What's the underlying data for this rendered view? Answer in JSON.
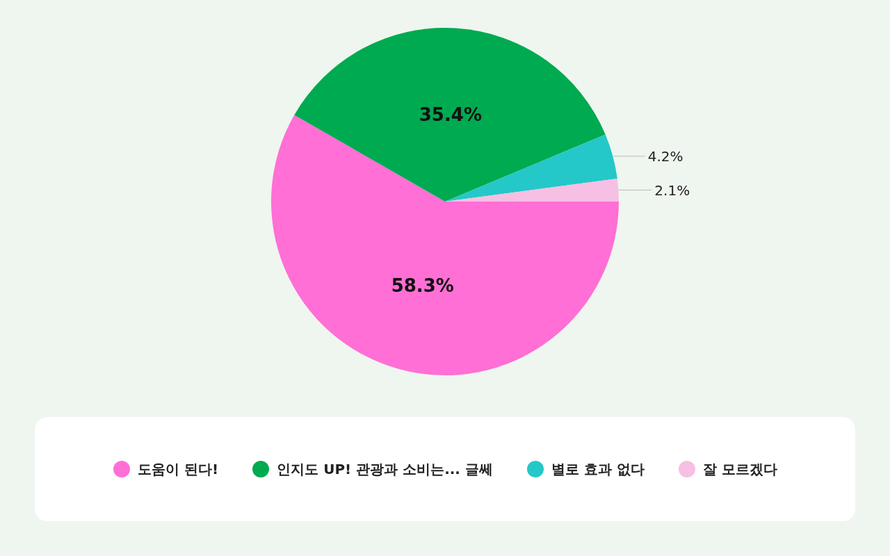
{
  "chart_data": {
    "type": "pie",
    "categories": [
      "도움이 된다!",
      "인지도 UP! 관광과 소비는... 글쎄",
      "별로 효과 없다",
      "잘 모르겠다"
    ],
    "values": [
      58.3,
      35.4,
      4.2,
      2.1
    ],
    "colors": [
      "#ff6fd5",
      "#00aa50",
      "#24c8c8",
      "#f7bfe3"
    ],
    "value_labels": [
      "58.3%",
      "35.4%",
      "4.2%",
      "2.1%"
    ],
    "legend": "bottom"
  }
}
